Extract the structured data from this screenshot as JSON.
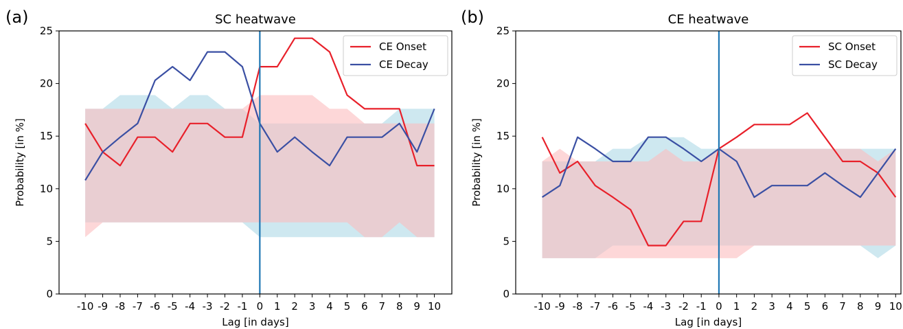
{
  "chart_data": [
    {
      "panel_label": "(a)",
      "type": "line",
      "title": "SC heatwave",
      "xlabel": "Lag [in days]",
      "ylabel": "Probability [in %]",
      "x": [
        -10,
        -9,
        -8,
        -7,
        -6,
        -5,
        -4,
        -3,
        -2,
        -1,
        0,
        1,
        2,
        3,
        4,
        5,
        6,
        7,
        8,
        9,
        10
      ],
      "xlim": [
        -11.5,
        11
      ],
      "ylim": [
        0,
        25
      ],
      "yticks": [
        0,
        5,
        10,
        15,
        20,
        25
      ],
      "legend_position": "top-right",
      "vline_x": 0,
      "series": [
        {
          "name": "CE Onset",
          "color": "#e8202a",
          "values": [
            16.2,
            13.5,
            12.2,
            14.9,
            14.9,
            13.5,
            16.2,
            16.2,
            14.9,
            14.9,
            21.6,
            21.6,
            24.3,
            24.3,
            23.0,
            18.9,
            17.6,
            17.6,
            17.6,
            12.2,
            12.2
          ]
        },
        {
          "name": "CE Decay",
          "color": "#3a4fa3",
          "values": [
            10.8,
            13.5,
            14.9,
            16.2,
            20.3,
            21.6,
            20.3,
            23.0,
            23.0,
            21.6,
            16.2,
            13.5,
            14.9,
            13.5,
            12.2,
            14.9,
            14.9,
            14.9,
            16.2,
            13.5,
            17.6
          ]
        }
      ],
      "bands": [
        {
          "color": "#add8e6",
          "lower": [
            6.8,
            6.8,
            6.8,
            6.8,
            6.8,
            6.8,
            6.8,
            6.8,
            6.8,
            6.8,
            5.4,
            5.4,
            5.4,
            5.4,
            5.4,
            5.4,
            5.4,
            5.4,
            5.4,
            5.4,
            5.4
          ],
          "upper": [
            17.6,
            17.6,
            18.9,
            18.9,
            18.9,
            17.6,
            18.9,
            18.9,
            17.6,
            17.6,
            16.2,
            16.2,
            16.2,
            16.2,
            16.2,
            16.2,
            16.2,
            16.2,
            17.6,
            17.6,
            17.6
          ]
        },
        {
          "color": "#fbbcbe",
          "lower": [
            5.4,
            6.8,
            6.8,
            6.8,
            6.8,
            6.8,
            6.8,
            6.8,
            6.8,
            6.8,
            6.8,
            6.8,
            6.8,
            6.8,
            6.8,
            6.8,
            5.4,
            5.4,
            6.8,
            5.4,
            5.4
          ],
          "upper": [
            17.6,
            17.6,
            17.6,
            17.6,
            17.6,
            17.6,
            17.6,
            17.6,
            17.6,
            17.6,
            18.9,
            18.9,
            18.9,
            18.9,
            17.6,
            17.6,
            16.2,
            16.2,
            16.2,
            16.2,
            16.2
          ]
        }
      ]
    },
    {
      "panel_label": "(b)",
      "type": "line",
      "title": "CE heatwave",
      "xlabel": "Lag [in days]",
      "ylabel": "Probability [in %]",
      "x": [
        -10,
        -9,
        -8,
        -7,
        -6,
        -5,
        -4,
        -3,
        -2,
        -1,
        0,
        1,
        2,
        3,
        4,
        5,
        6,
        7,
        8,
        9,
        10
      ],
      "xlim": [
        -11.5,
        10.3
      ],
      "ylim": [
        0,
        25
      ],
      "yticks": [
        0,
        5,
        10,
        15,
        20,
        25
      ],
      "legend_position": "top-right",
      "vline_x": 0,
      "series": [
        {
          "name": "SC Onset",
          "color": "#e8202a",
          "values": [
            14.9,
            11.5,
            12.6,
            10.3,
            9.2,
            8.0,
            4.6,
            4.6,
            6.9,
            6.9,
            13.8,
            14.9,
            16.1,
            16.1,
            16.1,
            17.2,
            14.9,
            12.6,
            12.6,
            11.5,
            9.2
          ]
        },
        {
          "name": "SC Decay",
          "color": "#3a4fa3",
          "values": [
            9.2,
            10.3,
            14.9,
            13.8,
            12.6,
            12.6,
            14.9,
            14.9,
            13.8,
            12.6,
            13.8,
            12.6,
            9.2,
            10.3,
            10.3,
            10.3,
            11.5,
            10.3,
            9.2,
            11.5,
            13.8
          ]
        }
      ],
      "bands": [
        {
          "color": "#add8e6",
          "lower": [
            3.4,
            3.4,
            3.4,
            3.4,
            4.6,
            4.6,
            4.6,
            4.6,
            4.6,
            4.6,
            4.6,
            4.6,
            4.6,
            4.6,
            4.6,
            4.6,
            4.6,
            4.6,
            4.6,
            3.4,
            4.6
          ],
          "upper": [
            12.6,
            12.6,
            12.6,
            12.6,
            13.8,
            13.8,
            14.9,
            14.9,
            14.9,
            13.8,
            13.8,
            13.8,
            13.8,
            13.8,
            13.8,
            13.8,
            13.8,
            13.8,
            13.8,
            13.8,
            13.8
          ]
        },
        {
          "color": "#fbbcbe",
          "lower": [
            3.4,
            3.4,
            3.4,
            3.4,
            3.4,
            3.4,
            3.4,
            3.4,
            3.4,
            3.4,
            3.4,
            3.4,
            4.6,
            4.6,
            4.6,
            4.6,
            4.6,
            4.6,
            4.6,
            4.6,
            4.6
          ],
          "upper": [
            12.6,
            13.8,
            12.6,
            12.6,
            12.6,
            12.6,
            12.6,
            13.8,
            12.6,
            12.6,
            13.8,
            13.8,
            13.8,
            13.8,
            13.8,
            13.8,
            13.8,
            13.8,
            13.8,
            12.6,
            13.8
          ]
        }
      ]
    }
  ]
}
